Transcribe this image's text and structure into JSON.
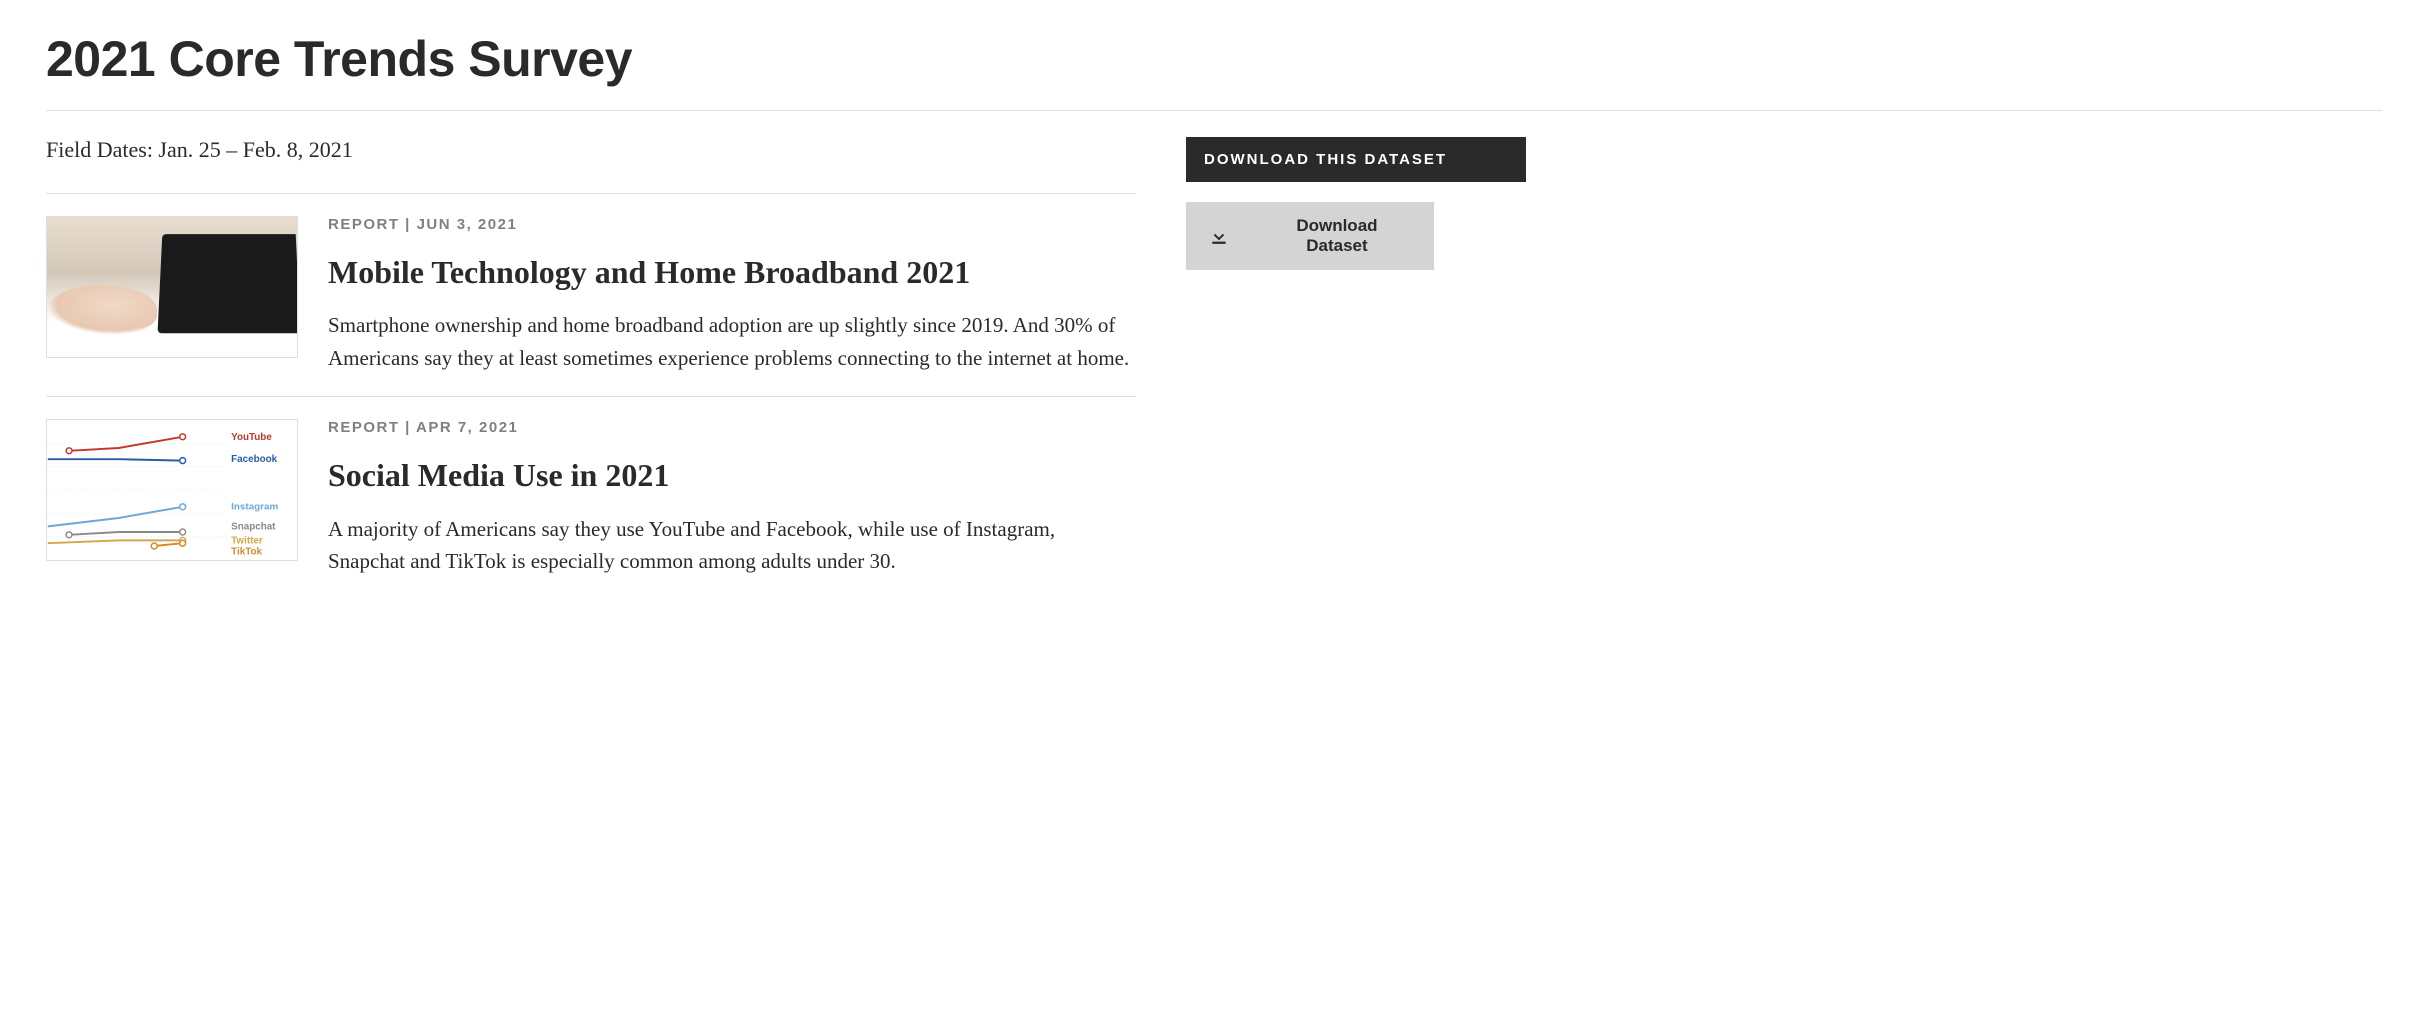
{
  "page_title": "2021 Core Trends Survey",
  "field_dates": "Field Dates: Jan. 25 – Feb. 8, 2021",
  "articles": [
    {
      "meta_type": "REPORT",
      "meta_sep": " | ",
      "meta_date": "JUN 3, 2021",
      "title": "Mobile Technology and Home Broadband 2021",
      "excerpt": "Smartphone ownership and home broadband adoption are up slightly since 2019. And 30% of Americans say they at least sometimes experience problems connecting to the internet at home.",
      "thumb_type": "photo-laptop"
    },
    {
      "meta_type": "REPORT",
      "meta_sep": " | ",
      "meta_date": "APR 7, 2021",
      "title": "Social Media Use in 2021",
      "excerpt": "A majority of Americans say they use YouTube and Facebook, while use of Instagram, Snapchat and TikTok is especially common among adults under 30.",
      "thumb_type": "chart-social",
      "chart": {
        "type": "line",
        "series": [
          {
            "label": "YouTube",
            "color": "#c0392b",
            "points": [
              [
                0.12,
                0.22
              ],
              [
                0.4,
                0.2
              ],
              [
                0.76,
                0.12
              ]
            ],
            "label_y": 0.12
          },
          {
            "label": "Facebook",
            "color": "#2c5ba8",
            "points": [
              [
                0.0,
                0.28
              ],
              [
                0.4,
                0.28
              ],
              [
                0.76,
                0.29
              ]
            ],
            "label_y": 0.28
          },
          {
            "label": "Instagram",
            "color": "#6fa8d8",
            "points": [
              [
                0.0,
                0.76
              ],
              [
                0.4,
                0.7
              ],
              [
                0.76,
                0.62
              ]
            ],
            "label_y": 0.62
          },
          {
            "label": "Snapchat",
            "color": "#8a8a8a",
            "points": [
              [
                0.12,
                0.82
              ],
              [
                0.4,
                0.8
              ],
              [
                0.76,
                0.8
              ]
            ],
            "label_y": 0.76
          },
          {
            "label": "Twitter",
            "color": "#d4a84a",
            "points": [
              [
                0.0,
                0.88
              ],
              [
                0.4,
                0.86
              ],
              [
                0.76,
                0.86
              ]
            ],
            "label_y": 0.86
          },
          {
            "label": "TikTok",
            "color": "#d48a2a",
            "points": [
              [
                0.6,
                0.9
              ],
              [
                0.76,
                0.88
              ]
            ],
            "label_y": 0.94
          }
        ],
        "grid_color": "#e8e8e8",
        "background_color": "#ffffff",
        "font_size": 10
      }
    }
  ],
  "sidebar": {
    "header": "DOWNLOAD THIS DATASET",
    "download_label": "Download Dataset"
  },
  "colors": {
    "text": "#2a2a2a",
    "meta": "#808080",
    "divider": "#dedede",
    "sidebar_header_bg": "#2a2a2a",
    "button_bg": "#d4d4d4"
  }
}
